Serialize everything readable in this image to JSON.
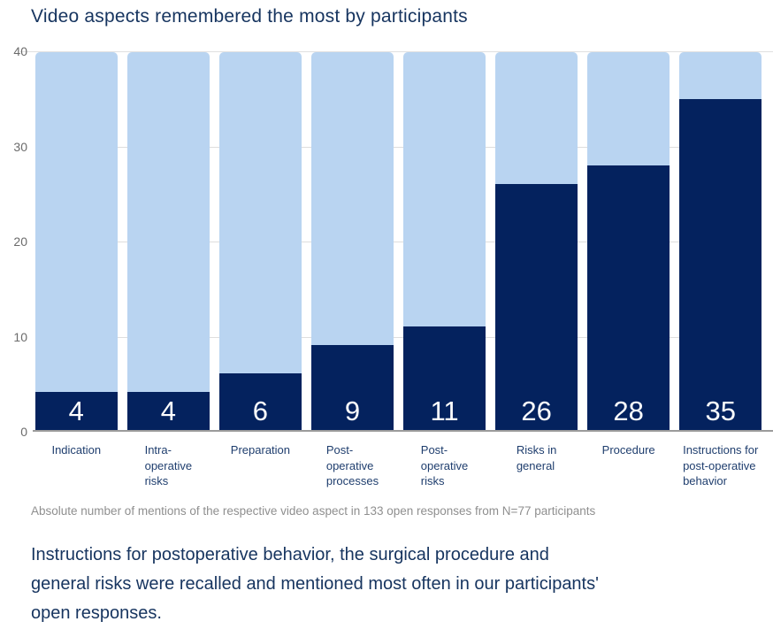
{
  "title": "Video aspects remembered the most by participants",
  "footnote": "Absolute number of mentions of the respective video aspect in 133 open responses from N=77 participants",
  "caption": "Instructions for postoperative behavior, the surgical procedure and\ngeneral risks were recalled and mentioned most often in our participants'\nopen responses.",
  "colors": {
    "bar_filled": "#04225e",
    "bar_remainder": "#b9d4f1",
    "title_text": "#16345f",
    "x_label_text": "#1f3e6e",
    "y_tick_text": "#6b6b6b",
    "footnote_text": "#8f8f8f",
    "value_label_text": "#ffffff",
    "gridline": "#dedede",
    "axis_line": "#9b9b9b"
  },
  "chart_data": {
    "type": "bar",
    "subtype": "stacked-to-max",
    "title": "Video aspects remembered the most by participants",
    "categories": [
      "Indication",
      "Intra-\noperative\nrisks",
      "Preparation",
      "Post-\noperative\nprocesses",
      "Post-\noperative\nrisks",
      "Risks in\ngeneral",
      "Procedure",
      "Instructions for\npost-operative\nbehavior"
    ],
    "values": [
      4,
      4,
      6,
      9,
      11,
      26,
      28,
      35
    ],
    "xlabel": "",
    "ylabel": "",
    "ylim": [
      0,
      40
    ],
    "yticks": [
      0,
      10,
      20,
      30,
      40
    ],
    "grid": "horizontal",
    "legend": "none",
    "value_labels": "inside-bottom"
  }
}
